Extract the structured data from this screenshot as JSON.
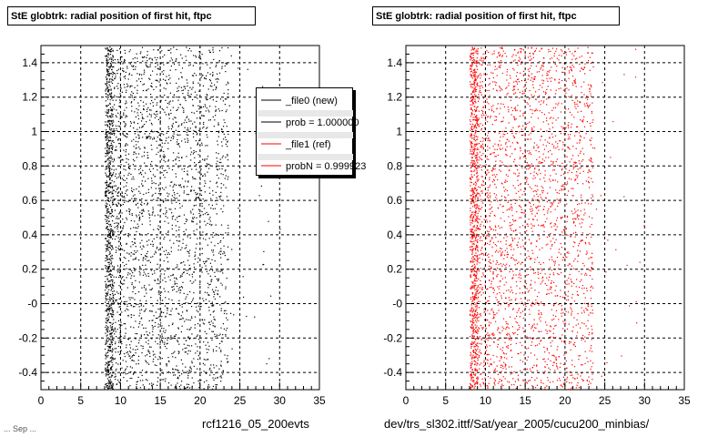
{
  "left_panel": {
    "title": "StE globtrk: radial position of first hit, ftpc",
    "caption": "rcf1216_05_200evts"
  },
  "right_panel": {
    "title": "StE globtrk: radial position of first hit, ftpc",
    "caption": "dev/trs_sl302.ittf/Sat/year_2005/cucu200_minbias/"
  },
  "legend": {
    "entries": [
      {
        "label": "_file0 (new)",
        "color": "#000000"
      },
      {
        "label": "prob = 1.000000",
        "color": "#000000"
      },
      {
        "label": "_file1 (ref)",
        "color": "#ff0000"
      },
      {
        "label": "probN = 0.999923",
        "color": "#ff0000"
      }
    ]
  },
  "footer": "... Sep  ...",
  "chart_data": [
    {
      "type": "scatter",
      "title": "StE globtrk: radial position of first hit, ftpc",
      "xlabel": "rcf1216_05_200evts",
      "ylabel": "",
      "xlim": [
        0,
        35
      ],
      "ylim": [
        -0.5,
        1.5
      ],
      "xticks": [
        0,
        5,
        10,
        15,
        20,
        25,
        30,
        35
      ],
      "yticks": [
        -0.4,
        -0.2,
        0,
        0.2,
        0.4,
        0.6,
        0.8,
        1,
        1.2,
        1.4
      ],
      "ytick_labels": [
        "-0.4",
        "-0.2",
        "-0",
        "0.2",
        "0.4",
        "0.6",
        "0.8",
        "1",
        "1.2",
        "1.4"
      ],
      "grid": true,
      "legend_position": "top-right",
      "series": [
        {
          "name": "_file0 (new)",
          "color": "#000000",
          "distribution": {
            "x_dense_band": [
              8,
              9
            ],
            "x_main_range": [
              9,
              23.5
            ],
            "x_sparse_max": 30,
            "y_range": [
              -0.5,
              1.5
            ]
          }
        }
      ]
    },
    {
      "type": "scatter",
      "title": "StE globtrk: radial position of first hit, ftpc",
      "xlabel": "dev/trs_sl302.ittf/Sat/year_2005/cucu200_minbias/",
      "ylabel": "",
      "xlim": [
        0,
        35
      ],
      "ylim": [
        -0.5,
        1.5
      ],
      "xticks": [
        0,
        5,
        10,
        15,
        20,
        25,
        30,
        35
      ],
      "yticks": [
        -0.4,
        -0.2,
        0,
        0.2,
        0.4,
        0.6,
        0.8,
        1,
        1.2,
        1.4
      ],
      "ytick_labels": [
        "-0.4",
        "-0.2",
        "-0",
        "0.2",
        "0.4",
        "0.6",
        "0.8",
        "1",
        "1.2",
        "1.4"
      ],
      "grid": true,
      "series": [
        {
          "name": "_file1 (ref)",
          "color": "#ff0000",
          "distribution": {
            "x_dense_band": [
              8,
              9
            ],
            "x_main_range": [
              9,
              23.5
            ],
            "x_sparse_max": 30,
            "y_range": [
              -0.5,
              1.5
            ]
          }
        }
      ]
    }
  ]
}
